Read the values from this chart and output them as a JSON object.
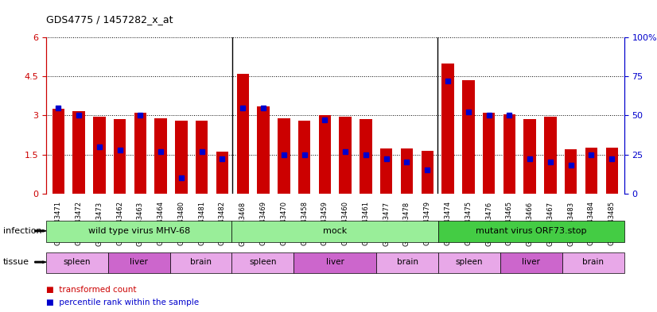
{
  "title": "GDS4775 / 1457282_x_at",
  "samples": [
    "GSM1243471",
    "GSM1243472",
    "GSM1243473",
    "GSM1243462",
    "GSM1243463",
    "GSM1243464",
    "GSM1243480",
    "GSM1243481",
    "GSM1243482",
    "GSM1243468",
    "GSM1243469",
    "GSM1243470",
    "GSM1243458",
    "GSM1243459",
    "GSM1243460",
    "GSM1243461",
    "GSM1243477",
    "GSM1243478",
    "GSM1243479",
    "GSM1243474",
    "GSM1243475",
    "GSM1243476",
    "GSM1243465",
    "GSM1243466",
    "GSM1243467",
    "GSM1243483",
    "GSM1243484",
    "GSM1243485"
  ],
  "transformed_count": [
    3.25,
    3.15,
    2.95,
    2.85,
    3.1,
    2.9,
    2.8,
    2.8,
    1.6,
    4.6,
    3.35,
    2.9,
    2.8,
    3.0,
    2.95,
    2.85,
    1.72,
    1.72,
    1.65,
    5.0,
    4.35,
    3.1,
    3.05,
    2.85,
    2.95,
    1.7,
    1.75,
    1.75
  ],
  "percentile_rank": [
    55,
    50,
    30,
    28,
    50,
    27,
    10,
    27,
    22,
    55,
    55,
    25,
    25,
    47,
    27,
    25,
    22,
    20,
    15,
    72,
    52,
    50,
    50,
    22,
    20,
    18,
    25,
    22
  ],
  "ylim_left": [
    0,
    6
  ],
  "ylim_right": [
    0,
    100
  ],
  "yticks_left": [
    0,
    1.5,
    3.0,
    4.5,
    6
  ],
  "ytick_labels_left": [
    "0",
    "1.5",
    "3",
    "4.5",
    "6"
  ],
  "yticks_right": [
    0,
    25,
    50,
    75,
    100
  ],
  "ytick_labels_right": [
    "0",
    "25",
    "50",
    "75",
    "100%"
  ],
  "bar_color": "#cc0000",
  "dot_color": "#0000cc",
  "bar_width": 0.6,
  "infection_groups": [
    {
      "label": "wild type virus MHV-68",
      "start": 0,
      "end": 9,
      "color": "#99ee99"
    },
    {
      "label": "mock",
      "start": 9,
      "end": 19,
      "color": "#99ee99"
    },
    {
      "label": "mutant virus ORF73.stop",
      "start": 19,
      "end": 28,
      "color": "#44cc44"
    }
  ],
  "tissue_groups": [
    {
      "label": "spleen",
      "start": 0,
      "end": 3,
      "color": "#dd88dd"
    },
    {
      "label": "liver",
      "start": 3,
      "end": 6,
      "color": "#cc66cc"
    },
    {
      "label": "brain",
      "start": 6,
      "end": 9,
      "color": "#dd88dd"
    },
    {
      "label": "spleen",
      "start": 9,
      "end": 12,
      "color": "#dd88dd"
    },
    {
      "label": "liver",
      "start": 12,
      "end": 16,
      "color": "#cc66cc"
    },
    {
      "label": "brain",
      "start": 16,
      "end": 19,
      "color": "#dd88dd"
    },
    {
      "label": "spleen",
      "start": 19,
      "end": 22,
      "color": "#dd88dd"
    },
    {
      "label": "liver",
      "start": 22,
      "end": 25,
      "color": "#cc66cc"
    },
    {
      "label": "brain",
      "start": 25,
      "end": 28,
      "color": "#dd88dd"
    }
  ],
  "legend_items": [
    {
      "label": "transformed count",
      "color": "#cc0000",
      "marker": "s"
    },
    {
      "label": "percentile rank within the sample",
      "color": "#0000cc",
      "marker": "s"
    }
  ],
  "infection_label": "infection",
  "tissue_label": "tissue",
  "bg_color": "#ffffff",
  "plot_bg_color": "#ffffff",
  "grid_color": "#000000",
  "axis_color_left": "#cc0000",
  "axis_color_right": "#0000cc"
}
